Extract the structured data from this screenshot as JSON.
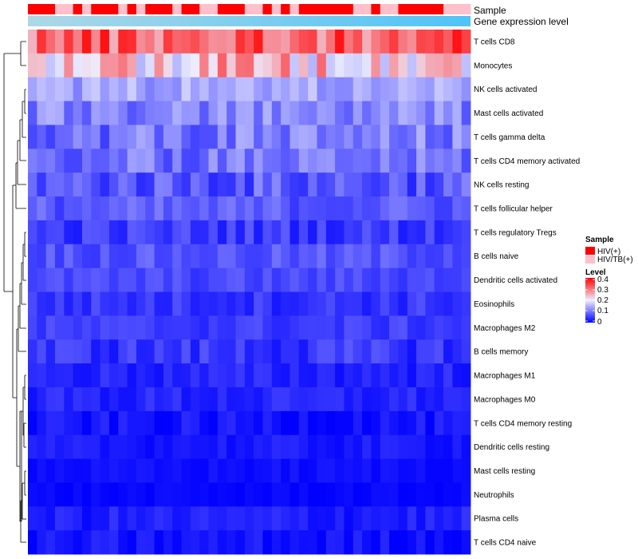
{
  "chart_data": {
    "type": "heatmap",
    "title": "",
    "rows": [
      "T cells CD8",
      "Monocytes",
      "NK cells activated",
      "Mast cells activated",
      "T cells gamma delta",
      "T cells CD4 memory activated",
      "NK cells resting",
      "T cells follicular helper",
      "T cells regulatory  Tregs",
      "B cells naive",
      "Dendritic cells activated",
      "Eosinophils",
      "Macrophages M2",
      "B cells memory",
      "Macrophages M1",
      "Macrophages M0",
      "T cells CD4 memory resting",
      "Dendritic cells resting",
      "Mast cells resting",
      "Neutrophils",
      "Plasma cells",
      "T cells CD4 naive"
    ],
    "n_columns": 49,
    "annotations": [
      {
        "name": "Sample",
        "kind": "categorical"
      },
      {
        "name": "Gene expression level",
        "kind": "gradient"
      }
    ],
    "sample_groups": [
      "HIV(+)",
      "HIV(+)",
      "HIV(+)",
      "HIV/TB(+)",
      "HIV/TB(+)",
      "HIV(+)",
      "HIV/TB(+)",
      "HIV(+)",
      "HIV(+)",
      "HIV(+)",
      "HIV/TB(+)",
      "HIV(+)",
      "HIV/TB(+)",
      "HIV(+)",
      "HIV(+)",
      "HIV(+)",
      "HIV/TB(+)",
      "HIV(+)",
      "HIV(+)",
      "HIV/TB(+)",
      "HIV/TB(+)",
      "HIV(+)",
      "HIV(+)",
      "HIV(+)",
      "HIV/TB(+)",
      "HIV/TB(+)",
      "HIV(+)",
      "HIV/TB(+)",
      "HIV(+)",
      "HIV/TB(+)",
      "HIV(+)",
      "HIV(+)",
      "HIV(+)",
      "HIV(+)",
      "HIV(+)",
      "HIV(+)",
      "HIV/TB(+)",
      "HIV/TB(+)",
      "HIV(+)",
      "HIV/TB(+)",
      "HIV/TB(+)",
      "HIV(+)",
      "HIV(+)",
      "HIV(+)",
      "HIV(+)",
      "HIV(+)",
      "HIV/TB(+)",
      "HIV/TB(+)",
      "HIV/TB(+)"
    ],
    "legend": {
      "sample_title": "Sample",
      "sample_entries": [
        {
          "label": "HIV(+)",
          "color": "#ff0000"
        },
        {
          "label": "HIV/TB(+)",
          "color": "#ffc0cb"
        }
      ],
      "level_title": "Level",
      "level_ticks": [
        "0.4",
        "0.3",
        "0.2",
        "0.1",
        "0"
      ],
      "level_range": [
        0,
        0.4
      ]
    },
    "color_scale": {
      "low": "#0000ff",
      "mid": "#eeeeff",
      "high": "#ff0000",
      "min": 0,
      "mid_value": 0.2,
      "max": 0.4
    },
    "annotation_gradient": {
      "start": "#add8e6",
      "end": "#4fc3f7"
    },
    "row_means": [
      0.32,
      0.24,
      0.14,
      0.11,
      0.1,
      0.095,
      0.075,
      0.075,
      0.05,
      0.07,
      0.06,
      0.045,
      0.05,
      0.045,
      0.03,
      0.03,
      0.015,
      0.02,
      0.012,
      0.005,
      0.025,
      0.015
    ],
    "row_spreads": [
      0.07,
      0.09,
      0.035,
      0.04,
      0.05,
      0.04,
      0.045,
      0.03,
      0.03,
      0.025,
      0.02,
      0.025,
      0.02,
      0.03,
      0.02,
      0.02,
      0.02,
      0.015,
      0.01,
      0.008,
      0.02,
      0.02
    ]
  }
}
